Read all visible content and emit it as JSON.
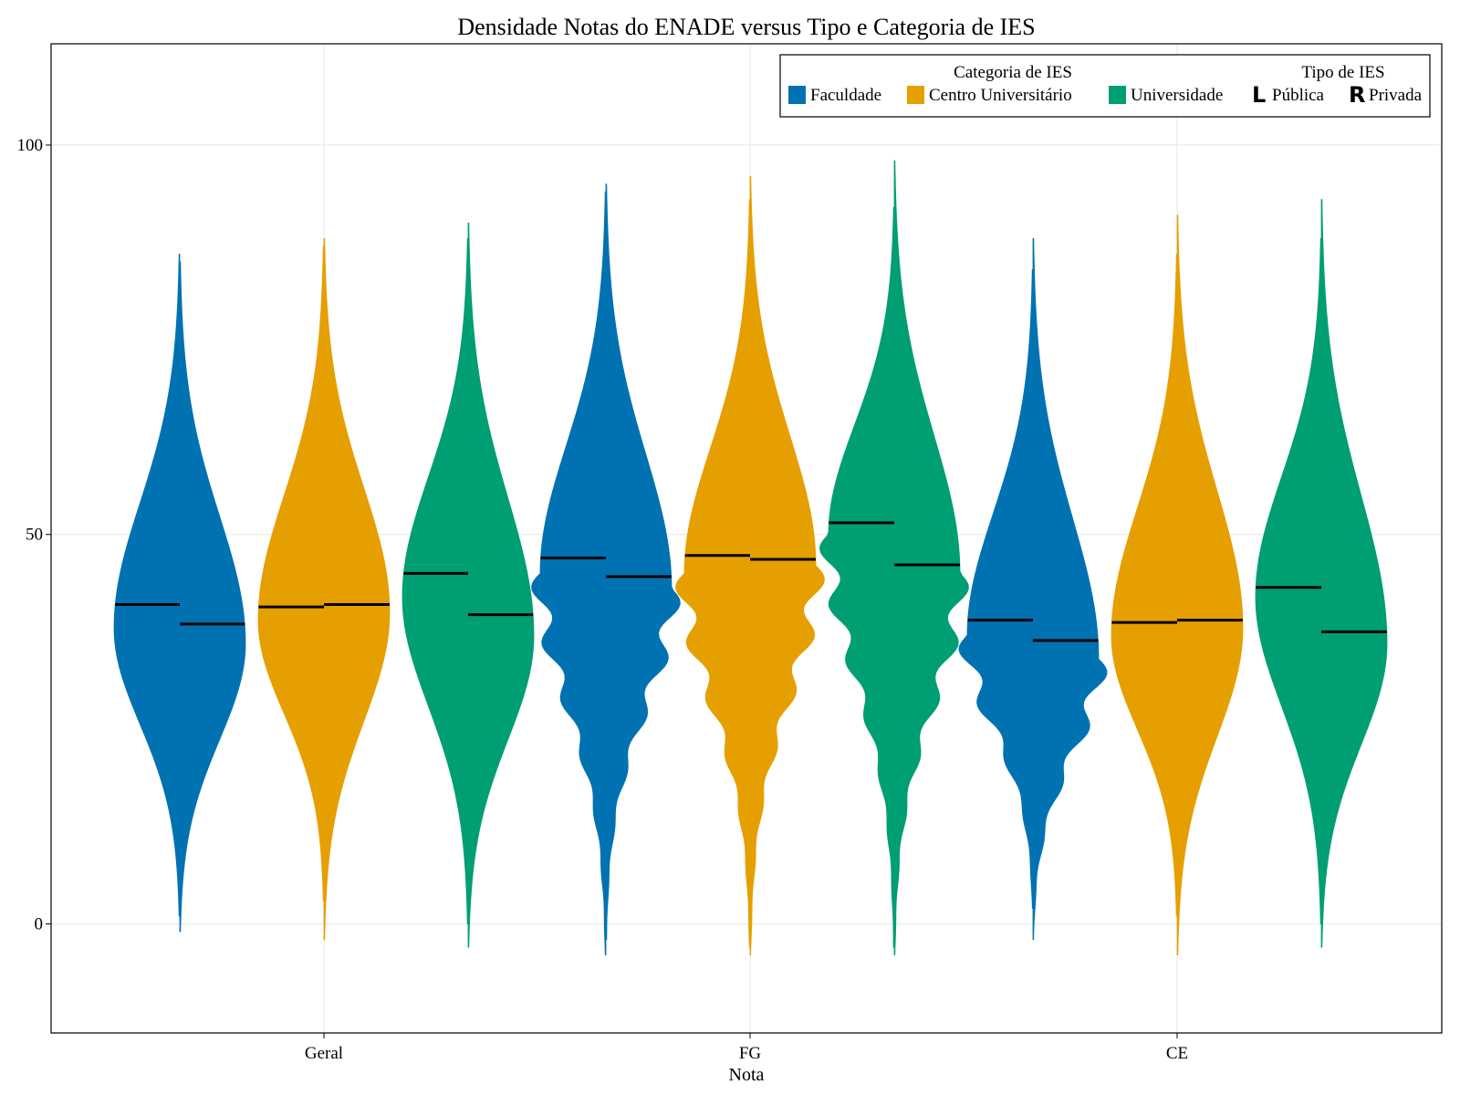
{
  "chart_data": {
    "type": "violin",
    "title": "Densidade Notas do ENADE versus Tipo e Categoria de IES",
    "xlabel": "Nota",
    "ylabel": "",
    "ylim": [
      -14,
      113
    ],
    "yticks": [
      0,
      50,
      100
    ],
    "grid": true,
    "legend_placement": "top-right",
    "categories": [
      "Geral",
      "FG",
      "CE"
    ],
    "legend": {
      "category_title": "Categoria de IES",
      "category_entries": [
        {
          "label": "Faculdade",
          "color": "#0072B2"
        },
        {
          "label": "Centro Universitário",
          "color": "#E69F00"
        },
        {
          "label": "Universidade",
          "color": "#009E73"
        }
      ],
      "type_title": "Tipo de IES",
      "type_entries": [
        {
          "glyph": "L",
          "label": "Pública"
        },
        {
          "glyph": "R",
          "label": "Privada"
        }
      ]
    },
    "series": [
      {
        "category": "Geral",
        "name": "Faculdade",
        "color": "#0072B2",
        "left": {
          "min": 1,
          "max": 86,
          "median": 41,
          "mode": 38,
          "rough": false
        },
        "right": {
          "min": -1,
          "max": 85,
          "median": 38.5,
          "mode": 36,
          "rough": false
        }
      },
      {
        "category": "Geral",
        "name": "Centro Universitário",
        "color": "#E69F00",
        "left": {
          "min": 3,
          "max": 87,
          "median": 40.7,
          "mode": 39,
          "rough": false
        },
        "right": {
          "min": -2,
          "max": 88,
          "median": 41,
          "mode": 40,
          "rough": false
        }
      },
      {
        "category": "Geral",
        "name": "Universidade",
        "color": "#009E73",
        "left": {
          "min": 0,
          "max": 88,
          "median": 45,
          "mode": 42,
          "rough": false
        },
        "right": {
          "min": -3,
          "max": 90,
          "median": 39.7,
          "mode": 37,
          "rough": false
        }
      },
      {
        "category": "FG",
        "name": "Faculdade",
        "color": "#0072B2",
        "left": {
          "min": -4,
          "max": 94,
          "median": 47,
          "mode": 45,
          "rough": true
        },
        "right": {
          "min": -2,
          "max": 95,
          "median": 44.6,
          "mode": 43,
          "rough": true
        }
      },
      {
        "category": "FG",
        "name": "Centro Universitário",
        "color": "#E69F00",
        "left": {
          "min": -3,
          "max": 93,
          "median": 47.3,
          "mode": 45,
          "rough": true
        },
        "right": {
          "min": -4,
          "max": 96,
          "median": 46.8,
          "mode": 46,
          "rough": true
        }
      },
      {
        "category": "FG",
        "name": "Universidade",
        "color": "#009E73",
        "left": {
          "min": -3,
          "max": 92,
          "median": 51.5,
          "mode": 50,
          "rough": true
        },
        "right": {
          "min": -4,
          "max": 98,
          "median": 46.1,
          "mode": 45,
          "rough": true
        }
      },
      {
        "category": "CE",
        "name": "Faculdade",
        "color": "#0072B2",
        "left": {
          "min": 2,
          "max": 84,
          "median": 39,
          "mode": 37,
          "rough": true
        },
        "right": {
          "min": -2,
          "max": 88,
          "median": 36.4,
          "mode": 34,
          "rough": true
        }
      },
      {
        "category": "CE",
        "name": "Centro Universitário",
        "color": "#E69F00",
        "left": {
          "min": 1,
          "max": 86,
          "median": 38.7,
          "mode": 37,
          "rough": false
        },
        "right": {
          "min": -4,
          "max": 91,
          "median": 39,
          "mode": 38,
          "rough": false
        }
      },
      {
        "category": "CE",
        "name": "Universidade",
        "color": "#009E73",
        "left": {
          "min": 0,
          "max": 88,
          "median": 43.2,
          "mode": 42,
          "rough": false
        },
        "right": {
          "min": -3,
          "max": 93,
          "median": 37.5,
          "mode": 36,
          "rough": false
        }
      }
    ]
  }
}
